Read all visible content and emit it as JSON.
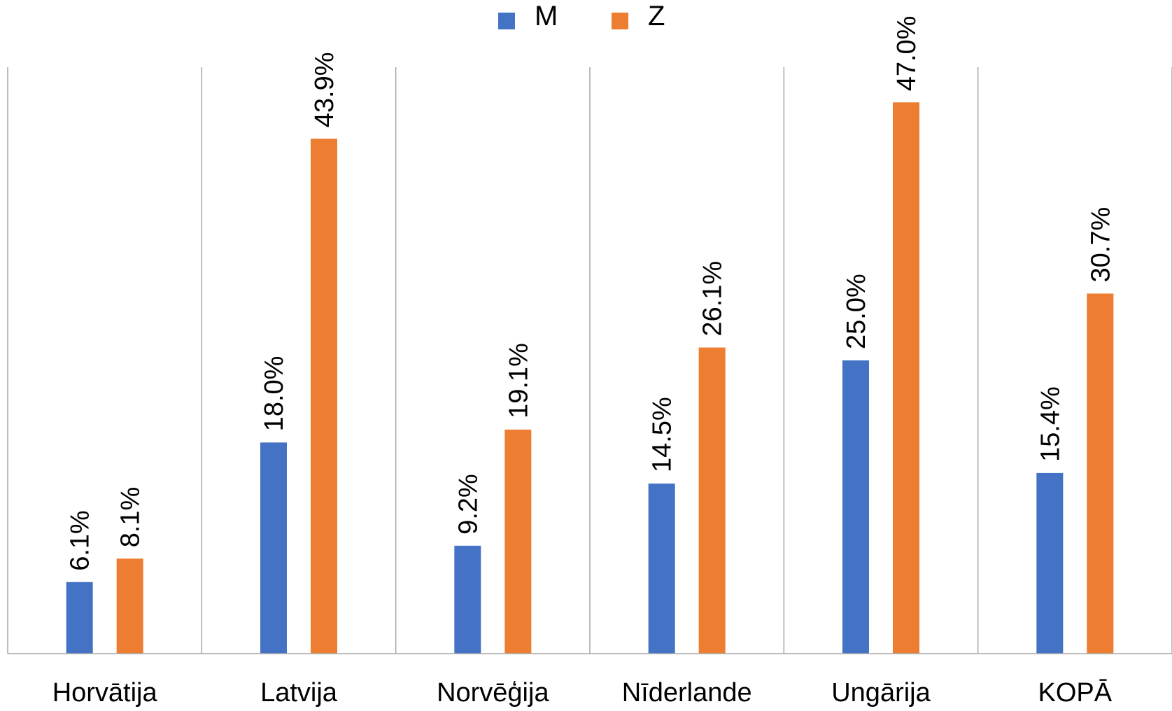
{
  "chart_data": {
    "type": "bar",
    "categories": [
      "Horvātija",
      "Latvija",
      "Norvēģija",
      "Nīderlande",
      "Ungārija",
      "KOPĀ"
    ],
    "series": [
      {
        "name": "M",
        "color": "#4472C4",
        "values": [
          6.1,
          18.0,
          9.2,
          14.5,
          25.0,
          15.4
        ],
        "labels": [
          "6.1%",
          "18.0%",
          "9.2%",
          "14.5%",
          "25.0%",
          "15.4%"
        ]
      },
      {
        "name": "Z",
        "color": "#ED7D31",
        "values": [
          8.1,
          43.9,
          19.1,
          26.1,
          47.0,
          30.7
        ],
        "labels": [
          "8.1%",
          "43.9%",
          "19.1%",
          "26.1%",
          "47.0%",
          "30.7%"
        ]
      }
    ],
    "ylim": [
      0,
      50
    ],
    "legend": "top-center",
    "grid": "vertical category separators",
    "data_labels": "rotated vertical, above bars"
  }
}
